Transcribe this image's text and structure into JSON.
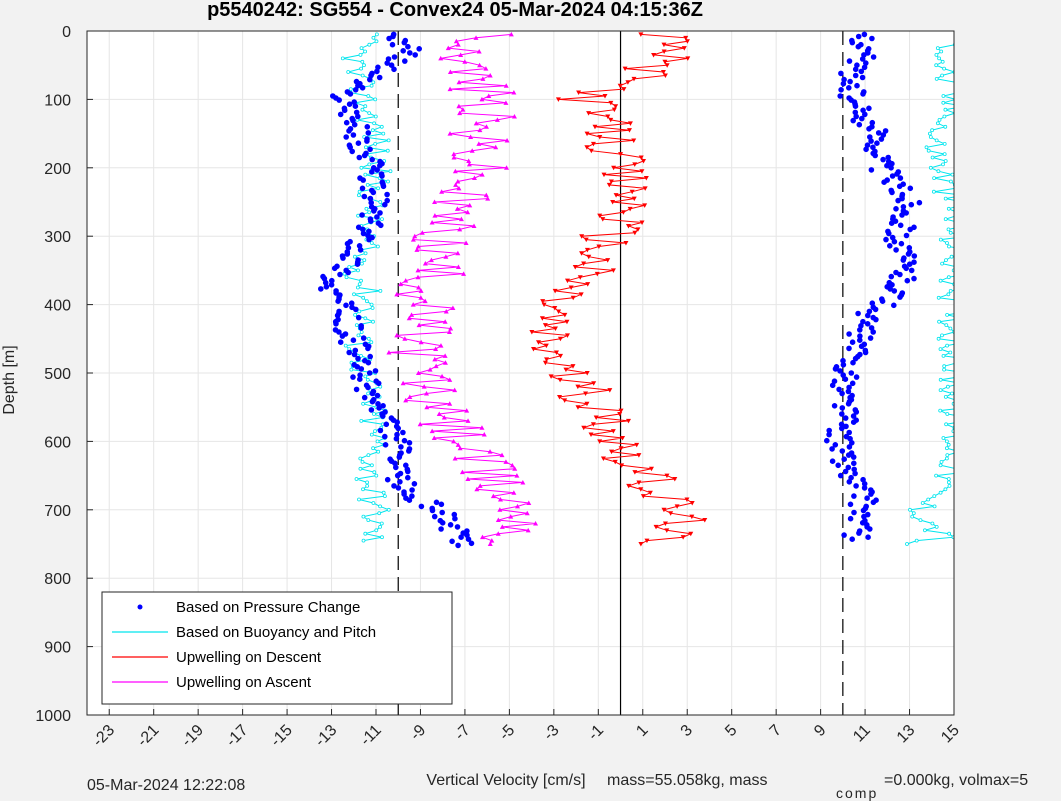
{
  "chart_data": {
    "type": "scatter",
    "title": "p5540242: SG554 - Convex24 05-Mar-2024 04:15:36Z",
    "xlabel": "Vertical Velocity [cm/s]",
    "ylabel": "Depth [m]",
    "xlim": [
      -24,
      15
    ],
    "ylim": [
      1000,
      0
    ],
    "y_reversed": true,
    "grid": true,
    "x_ticks": [
      -23,
      -21,
      -19,
      -17,
      -15,
      -13,
      -11,
      -9,
      -7,
      -5,
      -3,
      -1,
      1,
      3,
      5,
      7,
      9,
      11,
      13,
      15
    ],
    "y_ticks": [
      0,
      100,
      200,
      300,
      400,
      500,
      600,
      700,
      800,
      900,
      1000
    ],
    "legend_placement": "bottom-left",
    "legend": [
      {
        "label": "Based on Pressure Change",
        "color": "#0000ff",
        "marker": "dot"
      },
      {
        "label": "Based on Buoyancy and Pitch",
        "color": "#00e5ee",
        "marker": "line"
      },
      {
        "label": "Upwelling on Descent",
        "color": "#ff0000",
        "marker": "line"
      },
      {
        "label": "Upwelling on Ascent",
        "color": "#ff00ff",
        "marker": "line"
      }
    ],
    "reference_lines": [
      {
        "x": 0,
        "style": "solid"
      },
      {
        "x": -10,
        "style": "dashed"
      },
      {
        "x": 10,
        "style": "dashed"
      }
    ],
    "series": [
      {
        "name": "Pressure Change (descent)",
        "color": "#0000ff",
        "depth": [
          5,
          30,
          60,
          90,
          120,
          160,
          200,
          250,
          300,
          340,
          370,
          400,
          440,
          470,
          510,
          560,
          600,
          640,
          680,
          700,
          730,
          752
        ],
        "velocity": [
          -10,
          -9.5,
          -10.8,
          -12.5,
          -12,
          -11.8,
          -11.2,
          -11,
          -11.5,
          -12.2,
          -13.2,
          -12.5,
          -12.2,
          -11.8,
          -11.5,
          -10.8,
          -10,
          -10.2,
          -9.5,
          -8,
          -7.5,
          -7.2
        ]
      },
      {
        "name": "Pressure Change (ascent)",
        "color": "#0000ff",
        "depth": [
          5,
          30,
          60,
          100,
          150,
          200,
          250,
          300,
          350,
          380,
          420,
          470,
          510,
          560,
          600,
          640,
          680,
          720,
          745
        ],
        "velocity": [
          11,
          11,
          10.5,
          10.3,
          11.5,
          11.8,
          13,
          12.5,
          12.8,
          12.5,
          11,
          10.5,
          10,
          10.2,
          9.8,
          10.2,
          11,
          10.8,
          10.5
        ]
      },
      {
        "name": "Buoyancy and Pitch (descent)",
        "color": "#00e5ee",
        "depth": [
          5,
          30,
          60,
          100,
          150,
          200,
          250,
          300,
          350,
          400,
          450,
          500,
          550,
          600,
          650,
          700,
          748
        ],
        "velocity": [
          -11.5,
          -11.8,
          -12,
          -11.5,
          -11,
          -11,
          -11.2,
          -11.5,
          -11.8,
          -11.2,
          -11.8,
          -11.5,
          -11.2,
          -11,
          -11.3,
          -11,
          -11.2
        ]
      },
      {
        "name": "Buoyancy and Pitch (ascent)",
        "color": "#00e5ee",
        "depth": [
          10,
          50,
          130,
          150,
          270,
          310,
          505,
          580,
          640,
          660,
          700,
          740,
          750
        ],
        "velocity": [
          15,
          14.5,
          15,
          14,
          15,
          15,
          15,
          15,
          15,
          14.5,
          13.5,
          14.5,
          13
        ]
      },
      {
        "name": "Upwelling on Descent",
        "color": "#ff0000",
        "depth": [
          5,
          20,
          50,
          80,
          100,
          150,
          200,
          250,
          300,
          350,
          400,
          450,
          500,
          550,
          600,
          650,
          700,
          730,
          752
        ],
        "velocity": [
          1.5,
          2.5,
          1.5,
          0,
          -1.5,
          -0.5,
          -0.2,
          0.5,
          -0.5,
          -1.5,
          -3,
          -3.5,
          -2.5,
          -1,
          0,
          1,
          2.5,
          2.8,
          0.2
        ]
      },
      {
        "name": "Upwelling on Ascent",
        "color": "#ff00ff",
        "depth": [
          5,
          50,
          100,
          150,
          200,
          250,
          300,
          350,
          400,
          450,
          500,
          550,
          600,
          650,
          700,
          730,
          752
        ],
        "velocity": [
          -6,
          -7,
          -6,
          -6.5,
          -6.5,
          -7.5,
          -8,
          -8.5,
          -8.8,
          -9,
          -8.8,
          -8.5,
          -7,
          -6,
          -4.5,
          -4,
          -7.5
        ]
      }
    ]
  },
  "footer": {
    "timestamp": "05-Mar-2024 12:22:08",
    "mass_text": "mass=55.058kg, mass",
    "comp_sub": "comp",
    "comp_text": "=0.000kg, volmax=5"
  }
}
